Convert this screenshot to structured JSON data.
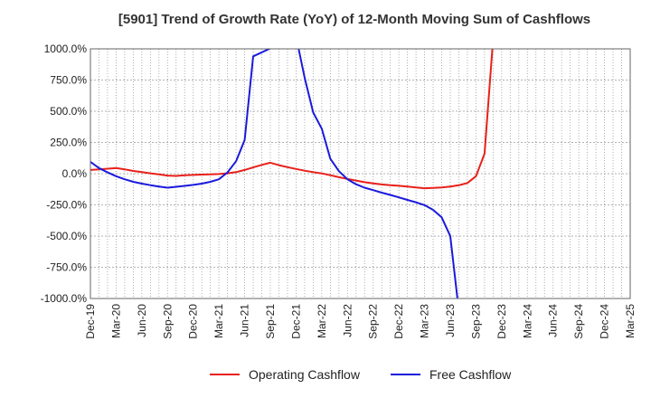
{
  "chart_data": {
    "type": "line",
    "title": "[5901]  Trend of Growth Rate (YoY) of 12-Month Moving Sum of Cashflows",
    "xlabel": "",
    "ylabel": "",
    "ylim": [
      -1000,
      1000
    ],
    "y_ticks": [
      1000,
      750,
      500,
      250,
      0,
      -250,
      -500,
      -750,
      -1000
    ],
    "y_tick_labels": [
      "1000.0%",
      "750.0%",
      "500.0%",
      "250.0%",
      "0.0%",
      "-250.0%",
      "-500.0%",
      "-750.0%",
      "-1000.0%"
    ],
    "x_range": [
      "2019-12",
      "2025-03"
    ],
    "x_tick_labels": [
      "Dec-19",
      "Mar-20",
      "Jun-20",
      "Sep-20",
      "Dec-20",
      "Mar-21",
      "Jun-21",
      "Sep-21",
      "Dec-21",
      "Mar-22",
      "Jun-22",
      "Sep-22",
      "Dec-22",
      "Mar-23",
      "Jun-23",
      "Sep-23",
      "Dec-23",
      "Mar-24",
      "Jun-24",
      "Sep-24",
      "Dec-24",
      "Mar-25"
    ],
    "grid": true,
    "legend_position": "bottom",
    "series": [
      {
        "name": "Operating Cashflow",
        "color": "#e8201a",
        "points": [
          [
            "2019-12",
            30
          ],
          [
            "2020-01",
            35
          ],
          [
            "2020-02",
            40
          ],
          [
            "2020-03",
            45
          ],
          [
            "2020-04",
            35
          ],
          [
            "2020-05",
            22
          ],
          [
            "2020-06",
            12
          ],
          [
            "2020-07",
            3
          ],
          [
            "2020-08",
            -5
          ],
          [
            "2020-09",
            -15
          ],
          [
            "2020-10",
            -18
          ],
          [
            "2020-11",
            -13
          ],
          [
            "2020-12",
            -10
          ],
          [
            "2021-01",
            -7
          ],
          [
            "2021-02",
            -5
          ],
          [
            "2021-03",
            -3
          ],
          [
            "2021-04",
            3
          ],
          [
            "2021-05",
            12
          ],
          [
            "2021-06",
            30
          ],
          [
            "2021-07",
            50
          ],
          [
            "2021-08",
            70
          ],
          [
            "2021-09",
            88
          ],
          [
            "2021-10",
            68
          ],
          [
            "2021-11",
            52
          ],
          [
            "2021-12",
            38
          ],
          [
            "2022-01",
            24
          ],
          [
            "2022-02",
            12
          ],
          [
            "2022-03",
            2
          ],
          [
            "2022-04",
            -12
          ],
          [
            "2022-05",
            -28
          ],
          [
            "2022-06",
            -42
          ],
          [
            "2022-07",
            -55
          ],
          [
            "2022-08",
            -68
          ],
          [
            "2022-09",
            -78
          ],
          [
            "2022-10",
            -86
          ],
          [
            "2022-11",
            -92
          ],
          [
            "2022-12",
            -97
          ],
          [
            "2023-01",
            -103
          ],
          [
            "2023-02",
            -110
          ],
          [
            "2023-03",
            -117
          ],
          [
            "2023-04",
            -114
          ],
          [
            "2023-05",
            -110
          ],
          [
            "2023-06",
            -103
          ],
          [
            "2023-07",
            -93
          ],
          [
            "2023-08",
            -75
          ],
          [
            "2023-09",
            -20
          ],
          [
            "2023-10",
            160
          ],
          [
            "2023-11",
            1080
          ]
        ]
      },
      {
        "name": "Free Cashflow",
        "color": "#1a1adc",
        "points": [
          [
            "2019-12",
            95
          ],
          [
            "2020-01",
            45
          ],
          [
            "2020-02",
            10
          ],
          [
            "2020-03",
            -20
          ],
          [
            "2020-04",
            -45
          ],
          [
            "2020-05",
            -65
          ],
          [
            "2020-06",
            -80
          ],
          [
            "2020-07",
            -92
          ],
          [
            "2020-08",
            -103
          ],
          [
            "2020-09",
            -112
          ],
          [
            "2020-10",
            -105
          ],
          [
            "2020-11",
            -98
          ],
          [
            "2020-12",
            -90
          ],
          [
            "2021-01",
            -80
          ],
          [
            "2021-02",
            -65
          ],
          [
            "2021-03",
            -45
          ],
          [
            "2021-04",
            10
          ],
          [
            "2021-05",
            100
          ],
          [
            "2021-06",
            270
          ],
          [
            "2021-07",
            940
          ],
          [
            "2021-12",
            1100
          ],
          [
            "2022-01",
            770
          ],
          [
            "2022-02",
            490
          ],
          [
            "2022-03",
            360
          ],
          [
            "2022-04",
            120
          ],
          [
            "2022-05",
            20
          ],
          [
            "2022-06",
            -45
          ],
          [
            "2022-07",
            -85
          ],
          [
            "2022-08",
            -112
          ],
          [
            "2022-09",
            -132
          ],
          [
            "2022-10",
            -152
          ],
          [
            "2022-11",
            -170
          ],
          [
            "2022-12",
            -190
          ],
          [
            "2023-01",
            -210
          ],
          [
            "2023-02",
            -230
          ],
          [
            "2023-03",
            -252
          ],
          [
            "2023-04",
            -290
          ],
          [
            "2023-05",
            -350
          ],
          [
            "2023-06",
            -500
          ],
          [
            "2023-07",
            -1100
          ]
        ]
      }
    ]
  }
}
